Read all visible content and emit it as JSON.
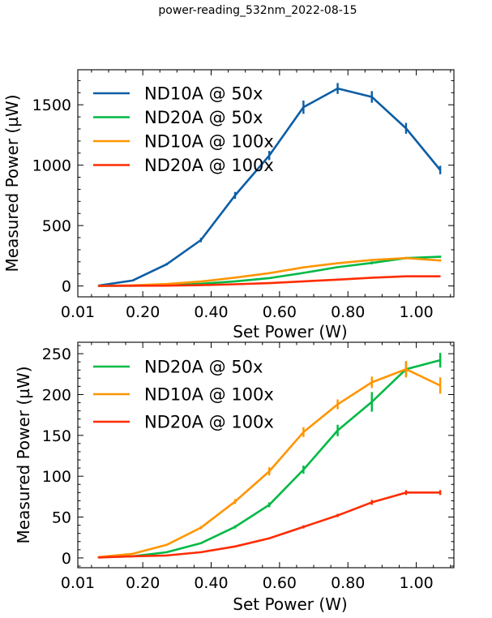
{
  "figure": {
    "suptitle": "power-reading_532nm_2022-08-15"
  },
  "chart_data": [
    {
      "type": "line",
      "xlabel": "Set Power (W)",
      "ylabel": "Measured Power (µW)",
      "xlim": [
        0.01,
        1.11
      ],
      "ylim": [
        -90,
        1790
      ],
      "xticks": [
        0.01,
        0.2,
        0.4,
        0.6,
        0.8,
        1.0
      ],
      "xtick_labels": [
        "0.01",
        "0.20",
        "0.40",
        "0.60",
        "0.80",
        "1.00"
      ],
      "yticks": [
        0,
        500,
        1000,
        1500
      ],
      "ytick_labels": [
        "0",
        "500",
        "1000",
        "1500"
      ],
      "grid": false,
      "legend_position": "upper-left",
      "x": [
        0.07,
        0.17,
        0.27,
        0.37,
        0.47,
        0.57,
        0.67,
        0.77,
        0.87,
        0.97,
        1.07
      ],
      "series": [
        {
          "name": "ND10A @ 50x",
          "color": "#0c5da5",
          "values": [
            3,
            45,
            180,
            380,
            750,
            1080,
            1480,
            1635,
            1565,
            1305,
            960
          ],
          "errors": [
            2,
            5,
            10,
            18,
            28,
            38,
            55,
            45,
            48,
            45,
            35
          ]
        },
        {
          "name": "ND20A @ 50x",
          "color": "#00b945",
          "values": [
            1,
            2,
            7,
            18,
            38,
            65,
            108,
            156,
            191,
            231,
            242
          ],
          "errors": [
            0.5,
            1,
            1,
            1,
            2,
            3,
            5,
            7,
            12,
            9,
            9
          ]
        },
        {
          "name": "ND10A @ 100x",
          "color": "#ff9500",
          "values": [
            1,
            5,
            16,
            37,
            69,
            106,
            154,
            188,
            215,
            231,
            211
          ],
          "errors": [
            0.5,
            1,
            1,
            2,
            3,
            5,
            6,
            6,
            7,
            10,
            10
          ]
        },
        {
          "name": "ND20A @ 100x",
          "color": "#ff2c00",
          "values": [
            0.5,
            2,
            3,
            7,
            14,
            24,
            38,
            52,
            68,
            80,
            80
          ],
          "errors": [
            0.3,
            0.5,
            0.5,
            1,
            1,
            1,
            2,
            2,
            3,
            3,
            3
          ]
        }
      ]
    },
    {
      "type": "line",
      "xlabel": "Set Power (W)",
      "ylabel": "Measured Power (µW)",
      "xlim": [
        0.01,
        1.11
      ],
      "ylim": [
        -12,
        264
      ],
      "xticks": [
        0.01,
        0.2,
        0.4,
        0.6,
        0.8,
        1.0
      ],
      "xtick_labels": [
        "0.01",
        "0.20",
        "0.40",
        "0.60",
        "0.80",
        "1.00"
      ],
      "yticks": [
        0,
        50,
        100,
        150,
        200,
        250
      ],
      "ytick_labels": [
        "0",
        "50",
        "100",
        "150",
        "200",
        "250"
      ],
      "grid": false,
      "legend_position": "upper-left",
      "x": [
        0.07,
        0.17,
        0.27,
        0.37,
        0.47,
        0.57,
        0.67,
        0.77,
        0.87,
        0.97,
        1.07
      ],
      "series": [
        {
          "name": "ND20A @ 50x",
          "color": "#00b945",
          "values": [
            1,
            2,
            7,
            18,
            38,
            65,
            108,
            156,
            191,
            231,
            242
          ],
          "errors": [
            0.5,
            1,
            1,
            1,
            2,
            3,
            5,
            7,
            12,
            9,
            9
          ]
        },
        {
          "name": "ND10A @ 100x",
          "color": "#ff9500",
          "values": [
            1,
            5,
            16,
            37,
            69,
            106,
            154,
            188,
            215,
            231,
            211
          ],
          "errors": [
            0.5,
            1,
            1,
            2,
            3,
            5,
            6,
            6,
            7,
            10,
            10
          ]
        },
        {
          "name": "ND20A @ 100x",
          "color": "#ff2c00",
          "values": [
            0.5,
            2,
            3,
            7,
            14,
            24,
            38,
            52,
            68,
            80,
            80
          ],
          "errors": [
            0.3,
            0.5,
            0.5,
            1,
            1,
            1,
            2,
            2,
            3,
            3,
            3
          ]
        }
      ]
    }
  ]
}
